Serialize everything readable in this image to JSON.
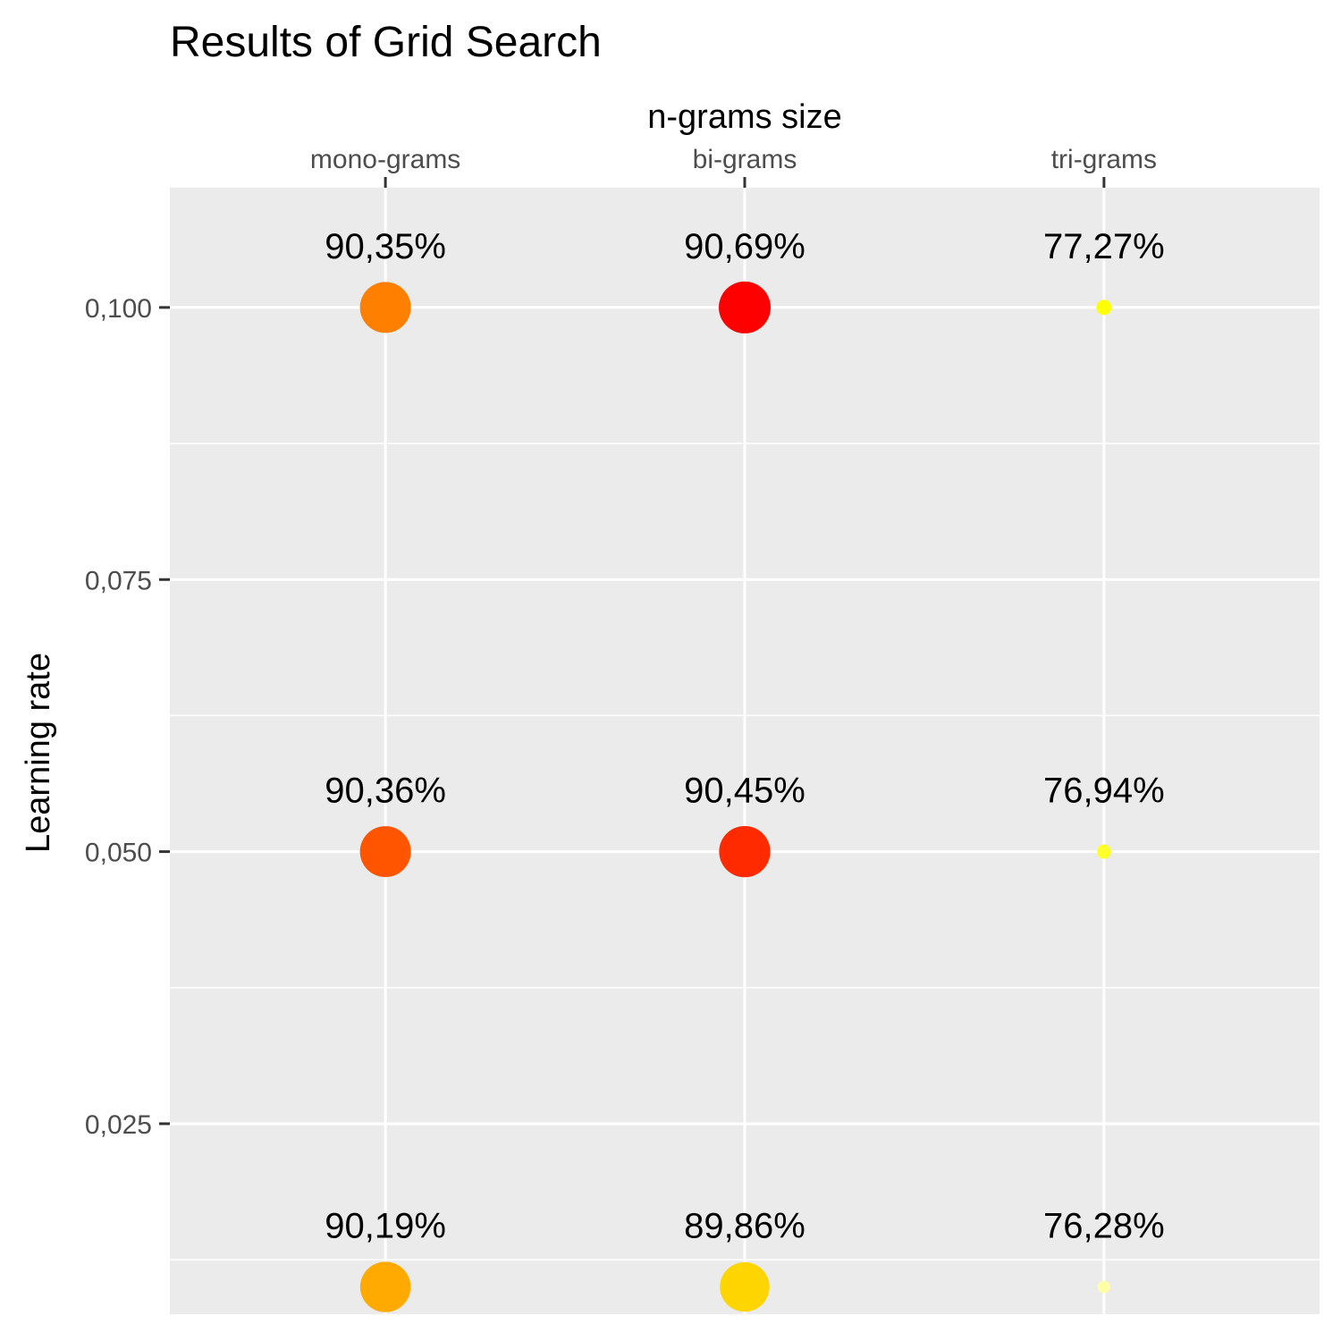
{
  "chart_data": {
    "type": "scatter",
    "title": "Results of Grid Search",
    "xlabel": "n-grams size",
    "ylabel": "Learning rate",
    "x_axis_position": "top",
    "categories": [
      "mono-grams",
      "bi-grams",
      "tri-grams"
    ],
    "y_ticks": [
      0.025,
      0.05,
      0.075,
      0.1
    ],
    "y_tick_labels": [
      "0,025",
      "0,050",
      "0,075",
      "0,100"
    ],
    "ylim": [
      0.0075,
      0.111
    ],
    "grid": true,
    "legend": "none",
    "points": [
      {
        "x": "mono-grams",
        "y": 0.1,
        "accuracy": 90.35,
        "label": "90,35%",
        "color": "#ff7f00"
      },
      {
        "x": "bi-grams",
        "y": 0.1,
        "accuracy": 90.69,
        "label": "90,69%",
        "color": "#ff0000"
      },
      {
        "x": "tri-grams",
        "y": 0.1,
        "accuracy": 77.27,
        "label": "77,27%",
        "color": "#ffff00"
      },
      {
        "x": "mono-grams",
        "y": 0.05,
        "accuracy": 90.36,
        "label": "90,36%",
        "color": "#ff5500"
      },
      {
        "x": "bi-grams",
        "y": 0.05,
        "accuracy": 90.45,
        "label": "90,45%",
        "color": "#ff2a00"
      },
      {
        "x": "tri-grams",
        "y": 0.05,
        "accuracy": 76.94,
        "label": "76,94%",
        "color": "#ffff2a"
      },
      {
        "x": "mono-grams",
        "y": 0.01,
        "accuracy": 90.19,
        "label": "90,19%",
        "color": "#ffaa00"
      },
      {
        "x": "bi-grams",
        "y": 0.01,
        "accuracy": 89.86,
        "label": "89,86%",
        "color": "#ffd500"
      },
      {
        "x": "tri-grams",
        "y": 0.01,
        "accuracy": 76.28,
        "label": "76,28%",
        "color": "#ffffaa"
      }
    ],
    "panel_background": "#ebebeb",
    "grid_color": "#ffffff"
  }
}
